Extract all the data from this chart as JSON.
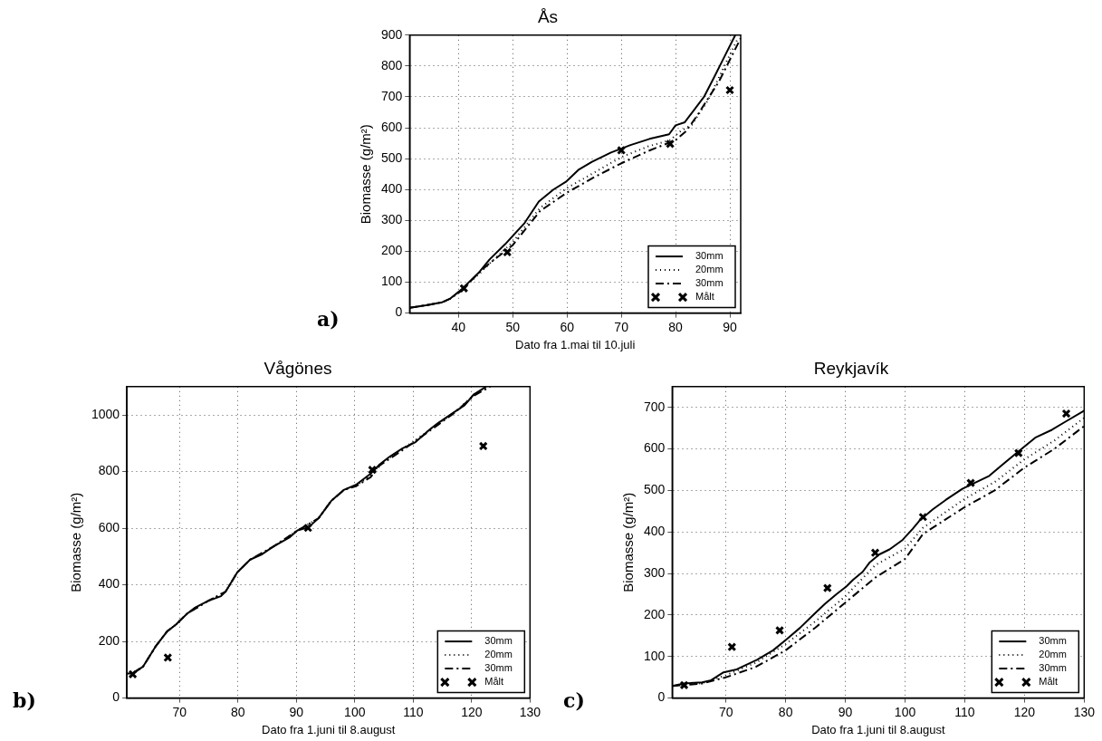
{
  "chart_data": [
    {
      "type": "line",
      "title": "Ås",
      "xlabel": "Dato fra 1.mai til 10.juli",
      "ylabel": "Biomasse (g/m²)",
      "annotations": [
        "a)"
      ],
      "xlim": [
        31,
        92
      ],
      "xticks": [
        40,
        50,
        60,
        70,
        80,
        90
      ],
      "ylim": [
        0,
        900
      ],
      "yticks": [
        0,
        100,
        200,
        300,
        400,
        500,
        600,
        700,
        800,
        900
      ],
      "grid": true,
      "legend": "bottom right",
      "series": [
        {
          "name": "30mm",
          "color": "#000000",
          "line_style": "solid",
          "marker": "none",
          "x": [
            31,
            34,
            37,
            38.5,
            40.4,
            43.9,
            45.7,
            48.6,
            52.2,
            54.8,
            57.5,
            59.8,
            62.2,
            64.6,
            68.1,
            71.7,
            75.2,
            78.8,
            80,
            81.7,
            85.3,
            87,
            89,
            91
          ],
          "values": [
            17,
            25,
            35,
            47,
            74,
            134,
            173,
            223,
            292,
            361,
            400,
            425,
            465,
            490,
            520,
            544,
            564,
            579,
            608,
            618,
            702,
            760,
            830,
            900
          ]
        },
        {
          "name": "20mm",
          "color": "#000000",
          "line_style": "dotted",
          "marker": "none",
          "x": [
            31,
            34,
            37,
            38.5,
            40.4,
            44,
            46,
            50,
            55,
            60,
            65,
            70,
            75,
            79,
            81,
            83,
            86,
            89,
            91.5
          ],
          "values": [
            17,
            25,
            35,
            47,
            72,
            130,
            165,
            230,
            340,
            405,
            455,
            505,
            540,
            560,
            590,
            610,
            690,
            800,
            890
          ]
        },
        {
          "name": "30mm",
          "color": "#000000",
          "line_style": "dashed",
          "marker": "none",
          "x": [
            31,
            34,
            37,
            38.5,
            40.4,
            44,
            46,
            50,
            55,
            60,
            65,
            70,
            75,
            80,
            82,
            84,
            88,
            92
          ],
          "values": [
            17,
            25,
            35,
            47,
            70,
            135,
            165,
            220,
            330,
            390,
            440,
            485,
            525,
            560,
            590,
            640,
            750,
            890
          ]
        },
        {
          "name": "Målt",
          "type": "scatter",
          "color": "#000000",
          "marker": "cross",
          "x": [
            41,
            49,
            70,
            79,
            90
          ],
          "values": [
            80,
            197,
            527,
            548,
            722
          ]
        }
      ]
    },
    {
      "type": "line",
      "title": "Vågönes",
      "xlabel": "Dato fra 1.juni til 8.august",
      "ylabel": "Biomasse (g/m²)",
      "annotations": [
        "b)"
      ],
      "xlim": [
        61,
        130
      ],
      "xticks": [
        70,
        80,
        90,
        100,
        110,
        120,
        130
      ],
      "ylim": [
        0,
        1100
      ],
      "yticks": [
        0,
        200,
        400,
        600,
        800,
        1000
      ],
      "grid": true,
      "legend": "bottom right",
      "series": [
        {
          "name": "30mm",
          "color": "#000000",
          "line_style": "solid",
          "marker": "none",
          "x": [
            61,
            62.1,
            63.8,
            66,
            67.9,
            69.3,
            71.3,
            72.7,
            74.9,
            77.1,
            77.9,
            79.9,
            82.1,
            84,
            86,
            88.8,
            90.2,
            92.1,
            93.8,
            96,
            98.2,
            100.2,
            102.7,
            104.3,
            106,
            108.2,
            110.4,
            112.9,
            114.3,
            117.1,
            118.8,
            120.4,
            122.5
          ],
          "values": [
            87,
            87,
            112,
            185,
            236,
            258,
            298,
            320,
            343,
            360,
            376,
            444,
            489,
            506,
            534,
            567,
            592,
            603,
            635,
            697,
            736,
            753,
            792,
            826,
            853,
            882,
            904,
            950,
            972,
            1011,
            1034,
            1073,
            1100
          ]
        },
        {
          "name": "20mm",
          "color": "#000000",
          "line_style": "dotted",
          "marker": "none",
          "x": [
            61,
            62.1,
            63.8,
            66,
            67.9,
            69.3,
            71.3,
            74.9,
            77.9,
            79.9,
            82.1,
            86,
            90.2,
            93.8,
            96,
            98.2,
            100.2,
            102.7,
            104.3,
            108.2,
            112.9,
            117.1,
            120.4,
            122.5
          ],
          "values": [
            87,
            87,
            112,
            185,
            236,
            258,
            298,
            343,
            376,
            444,
            489,
            534,
            592,
            635,
            697,
            736,
            750,
            785,
            826,
            880,
            948,
            1010,
            1070,
            1100
          ]
        },
        {
          "name": "30mm",
          "color": "#000000",
          "line_style": "dashed",
          "marker": "none",
          "x": [
            62,
            63.8,
            66,
            67.9,
            69.3,
            71.3,
            74.9,
            77.9,
            79.9,
            82.1,
            86,
            90.2,
            93.8,
            96,
            98.2,
            100.2,
            102.7,
            104.3,
            108.2,
            112.9,
            117.1,
            120.4,
            123.2
          ],
          "values": [
            88,
            112,
            185,
            236,
            258,
            298,
            343,
            376,
            444,
            489,
            534,
            592,
            635,
            697,
            736,
            748,
            780,
            822,
            876,
            945,
            1008,
            1068,
            1100
          ]
        },
        {
          "name": "Målt",
          "type": "scatter",
          "color": "#000000",
          "marker": "cross",
          "x": [
            62,
            68,
            92,
            103,
            122
          ],
          "values": [
            84,
            143,
            601,
            806,
            890
          ]
        }
      ]
    },
    {
      "type": "line",
      "title": "Reykjavík",
      "xlabel": "Dato fra 1.juni til 8.august",
      "ylabel": "Biomasse (g/m²)",
      "annotations": [
        "c)"
      ],
      "xlim": [
        61,
        130
      ],
      "xticks": [
        70,
        80,
        90,
        100,
        110,
        120,
        130
      ],
      "ylim": [
        0,
        750
      ],
      "yticks": [
        0,
        100,
        200,
        300,
        400,
        500,
        600,
        700
      ],
      "grid": true,
      "legend": "bottom right",
      "series": [
        {
          "name": "30mm",
          "color": "#000000",
          "line_style": "solid",
          "marker": "none",
          "x": [
            61,
            63,
            66,
            67.4,
            69.6,
            71.8,
            75.2,
            77.9,
            80.2,
            82.4,
            84.6,
            86.6,
            88.5,
            90.2,
            91.3,
            92.9,
            94.1,
            95.7,
            97.4,
            99.6,
            101.3,
            102.4,
            104.6,
            106.8,
            109.6,
            111.8,
            114.1,
            116.3,
            118.5,
            121.8,
            124.6,
            126.8,
            130
          ],
          "values": [
            29,
            35,
            38,
            42,
            62,
            69,
            92,
            115,
            142,
            169,
            200,
            227,
            250,
            269,
            285,
            304,
            327,
            346,
            358,
            381,
            408,
            427,
            454,
            477,
            504,
            519,
            535,
            562,
            588,
            627,
            646,
            665,
            692
          ]
        },
        {
          "name": "20mm",
          "color": "#000000",
          "line_style": "dotted",
          "marker": "none",
          "x": [
            61,
            66,
            70,
            75,
            80,
            85,
            90,
            95,
            100,
            103,
            110,
            115,
            120,
            125,
            130
          ],
          "values": [
            29,
            36,
            55,
            85,
            130,
            185,
            245,
            320,
            360,
            410,
            480,
            520,
            575,
            620,
            675
          ]
        },
        {
          "name": "30mm",
          "color": "#000000",
          "line_style": "dashed",
          "marker": "none",
          "x": [
            61,
            66,
            70,
            75,
            80,
            85,
            90,
            95,
            100,
            103,
            110,
            115,
            120,
            125,
            130
          ],
          "values": [
            29,
            35,
            50,
            75,
            115,
            170,
            230,
            290,
            335,
            395,
            460,
            500,
            555,
            600,
            655
          ]
        },
        {
          "name": "Målt",
          "type": "scatter",
          "color": "#000000",
          "marker": "cross",
          "x": [
            63,
            71,
            79,
            87,
            95,
            103,
            111,
            119,
            127
          ],
          "values": [
            31,
            123,
            163,
            265,
            350,
            436,
            518,
            590,
            685
          ]
        }
      ]
    }
  ]
}
